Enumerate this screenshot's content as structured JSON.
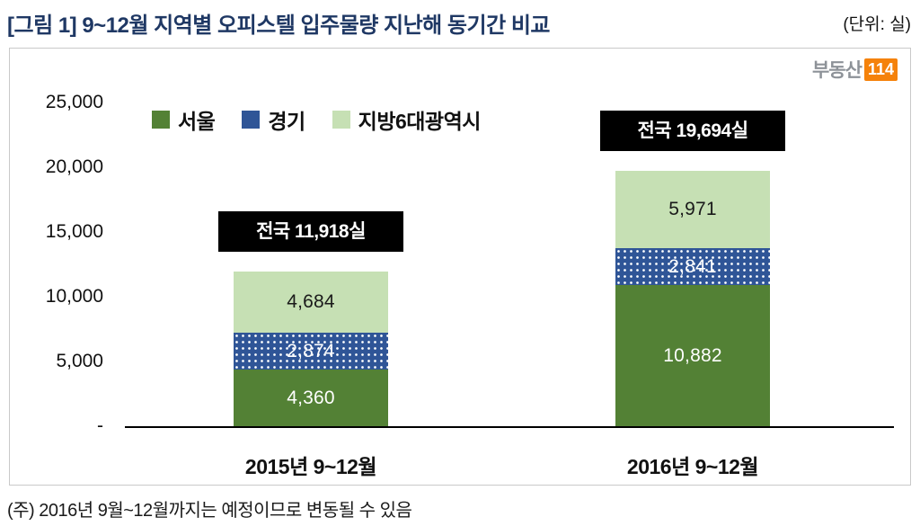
{
  "header": {
    "title": "[그림 1] 9~12월 지역별 오피스텔 입주물량 지난해 동기간 비교",
    "unit": "(단위: 실)"
  },
  "logo": {
    "text": "부동산",
    "badge": "114"
  },
  "chart_data": {
    "type": "bar",
    "stacked": true,
    "categories": [
      "2015년 9~12월",
      "2016년 9~12월"
    ],
    "series": [
      {
        "name": "서울",
        "color": "#538135",
        "label_color": "#ffffff",
        "pattern": "solid",
        "values": [
          4360,
          10882
        ]
      },
      {
        "name": "경기",
        "color": "#2f5597",
        "label_color": "#ffffff",
        "pattern": "dots",
        "values": [
          2874,
          2841
        ]
      },
      {
        "name": "지방6대광역시",
        "color": "#c6e0b4",
        "label_color": "#1a1a1a",
        "pattern": "solid",
        "values": [
          4684,
          5971
        ]
      }
    ],
    "totals": [
      "전국 11,918실",
      "전국 19,694실"
    ],
    "ylim": [
      0,
      25000
    ],
    "yticks": [
      "25,000",
      "20,000",
      "15,000",
      "10,000",
      "5,000",
      "-"
    ],
    "ytick_values": [
      25000,
      20000,
      15000,
      10000,
      5000,
      0
    ],
    "legend_position": "top-left-inside",
    "grid": false,
    "total_label_bg": "#000000",
    "total_label_color": "#ffffff"
  },
  "footer": {
    "note": "(주) 2016년 9월~12월까지는 예정이므로 변동될 수 있음"
  }
}
